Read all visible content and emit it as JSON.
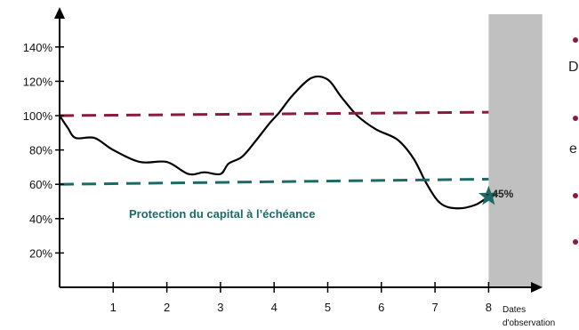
{
  "chart_data": {
    "type": "line",
    "ylim": [
      0,
      1.5
    ],
    "xlim": [
      0,
      9
    ],
    "y_ticks": [
      {
        "value": 0.2,
        "label": "20%"
      },
      {
        "value": 0.4,
        "label": "40%"
      },
      {
        "value": 0.6,
        "label": "60%"
      },
      {
        "value": 0.8,
        "label": "80%"
      },
      {
        "value": 1.0,
        "label": "100%"
      },
      {
        "value": 1.2,
        "label": "120%"
      },
      {
        "value": 1.4,
        "label": "140%"
      }
    ],
    "x_ticks": [
      "1",
      "2",
      "3",
      "4",
      "5",
      "6",
      "7",
      "8"
    ],
    "xlabel_lines": [
      "Dates",
      "d'observation"
    ],
    "series": [
      {
        "color": "#000000",
        "x": [
          0,
          0.15,
          0.3,
          0.65,
          1.0,
          1.5,
          2.0,
          2.4,
          2.7,
          3.0,
          3.15,
          3.4,
          3.65,
          3.9,
          4.1,
          4.35,
          4.7,
          5.0,
          5.25,
          5.55,
          5.9,
          6.3,
          6.6,
          6.85,
          7.1,
          7.4,
          7.75,
          8.0
        ],
        "y": [
          1.0,
          0.93,
          0.87,
          0.87,
          0.8,
          0.73,
          0.73,
          0.66,
          0.67,
          0.66,
          0.72,
          0.76,
          0.85,
          0.95,
          1.02,
          1.12,
          1.22,
          1.21,
          1.11,
          1.0,
          0.92,
          0.86,
          0.75,
          0.6,
          0.49,
          0.46,
          0.48,
          0.53
        ]
      },
      {
        "color": "#8b1a3c",
        "style": "dashed",
        "x": [
          0,
          8
        ],
        "y": [
          1.0,
          1.02
        ]
      },
      {
        "color": "#1a6b66",
        "style": "dashed",
        "x": [
          0,
          8
        ],
        "y": [
          0.6,
          0.63
        ]
      }
    ],
    "shaded_region": {
      "x_from": 8.0,
      "x_to": 9.0,
      "color": "#c0c0c0"
    },
    "annotations": [
      {
        "text": "Protection du capital à l’échéance",
        "color": "#1a6b66"
      },
      {
        "text": "- 45%",
        "x": 8.0,
        "y": 0.53
      }
    ],
    "marker": {
      "shape": "star",
      "x": 8.0,
      "y": 0.53,
      "color": "#1a6b66"
    }
  },
  "side_text": {
    "fragments": [
      "D",
      "e"
    ],
    "bullet_color": "#8b1a3c"
  }
}
